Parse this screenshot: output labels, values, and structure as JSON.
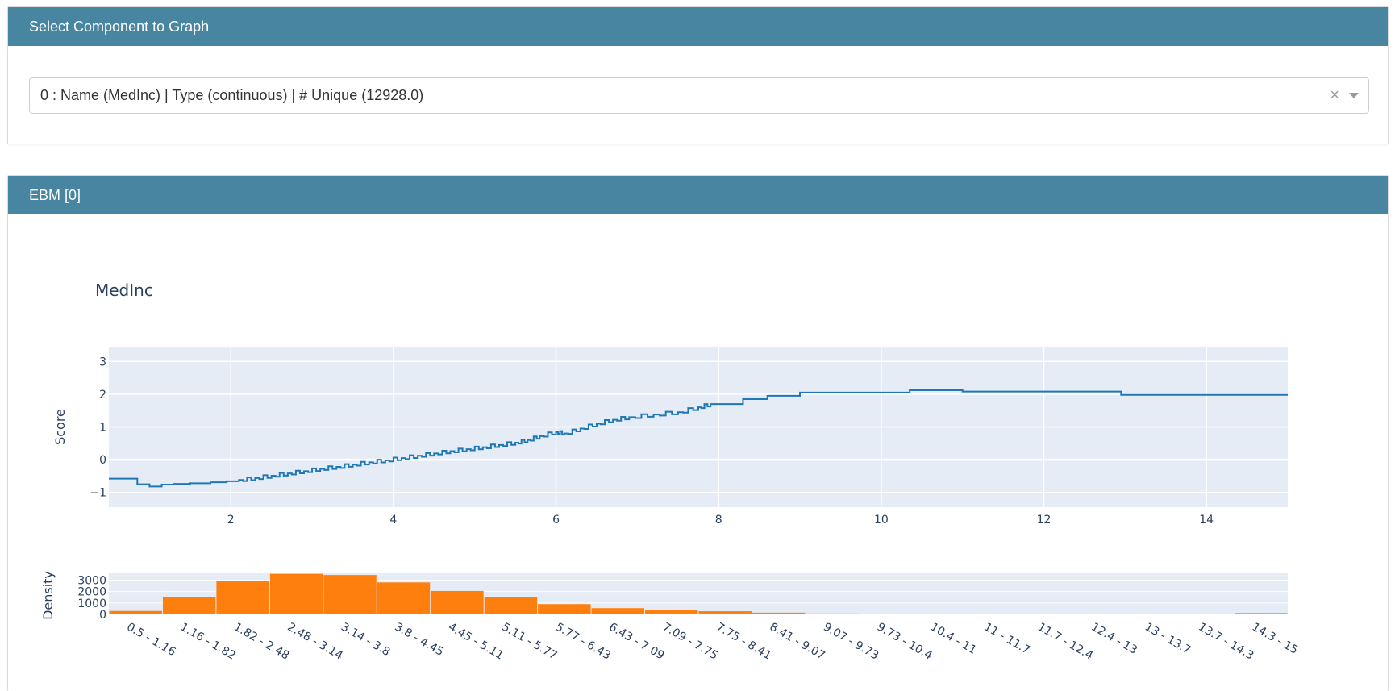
{
  "colors": {
    "header_bg": "#4785a0",
    "plot_bg": "#e5ecf6",
    "line": "#1f77b4",
    "bar": "#ff7f0e",
    "axis_text": "#2a3f5f"
  },
  "select_panel": {
    "title": "Select Component to Graph",
    "selected_value": "0 : Name (MedInc) | Type (continuous) | # Unique (12928.0)",
    "clear_icon": "×",
    "dropdown_icon": "chevron-down-icon"
  },
  "ebm_panel": {
    "title": "EBM [0]"
  },
  "chart_data": [
    {
      "type": "line",
      "line_shape": "step",
      "title": "MedInc",
      "xlabel": "",
      "ylabel": "Score",
      "xlim": [
        0.5,
        15
      ],
      "ylim": [
        -1.45,
        3.45
      ],
      "x_ticks": [
        2,
        4,
        6,
        8,
        10,
        12,
        14
      ],
      "y_ticks": [
        -1,
        0,
        1,
        2,
        3
      ],
      "y_tick_labels": [
        "−1",
        "0",
        "1",
        "2",
        "3"
      ],
      "grid": true,
      "series": [
        {
          "x": [
            0.5,
            0.85,
            0.85,
            1.0,
            1.0,
            1.15,
            1.15,
            1.3,
            1.5,
            1.75,
            1.95,
            2.1,
            2.3,
            2.5,
            2.7,
            2.9,
            3.1,
            3.3,
            3.5,
            3.7,
            3.9,
            4.1,
            4.3,
            4.5,
            4.7,
            4.9,
            5.1,
            5.3,
            5.5,
            5.65,
            5.8,
            6.0,
            6.1,
            6.3,
            6.5,
            6.7,
            6.9,
            7.2,
            7.5,
            7.75,
            7.9,
            8.3,
            8.6,
            9.0,
            9.5,
            10.35,
            11.0,
            12.0,
            12.95,
            14.0,
            15.0
          ],
          "y": [
            -0.58,
            -0.58,
            -0.75,
            -0.75,
            -0.82,
            -0.82,
            -0.76,
            -0.74,
            -0.72,
            -0.69,
            -0.66,
            -0.62,
            -0.56,
            -0.49,
            -0.42,
            -0.35,
            -0.28,
            -0.22,
            -0.15,
            -0.08,
            -0.02,
            0.05,
            0.12,
            0.19,
            0.26,
            0.32,
            0.38,
            0.45,
            0.52,
            0.6,
            0.72,
            0.85,
            0.8,
            0.95,
            1.1,
            1.22,
            1.3,
            1.38,
            1.45,
            1.6,
            1.7,
            1.85,
            1.95,
            2.05,
            2.05,
            2.12,
            2.08,
            2.08,
            1.98,
            1.98,
            1.98
          ]
        }
      ]
    },
    {
      "type": "bar",
      "ylabel": "Density",
      "ylim": [
        0,
        3600
      ],
      "y_ticks": [
        0,
        1000,
        2000,
        3000
      ],
      "categories": [
        "0.5 - 1.16",
        "1.16 - 1.82",
        "1.82 - 2.48",
        "2.48 - 3.14",
        "3.14 - 3.8",
        "3.8 - 4.45",
        "4.45 - 5.11",
        "5.11 - 5.77",
        "5.77 - 6.43",
        "6.43 - 7.09",
        "7.09 - 7.75",
        "7.75 - 8.41",
        "8.41 - 9.07",
        "9.07 - 9.73",
        "9.73 - 10.4",
        "10.4 - 11",
        "11 - 11.7",
        "11.7 - 12.4",
        "12.4 - 13",
        "13 - 13.7",
        "13.7 - 14.3",
        "14.3 - 15"
      ],
      "values": [
        300,
        1500,
        2950,
        3550,
        3450,
        2800,
        2050,
        1500,
        900,
        550,
        380,
        280,
        150,
        80,
        50,
        40,
        20,
        10,
        8,
        6,
        5,
        120
      ]
    }
  ]
}
